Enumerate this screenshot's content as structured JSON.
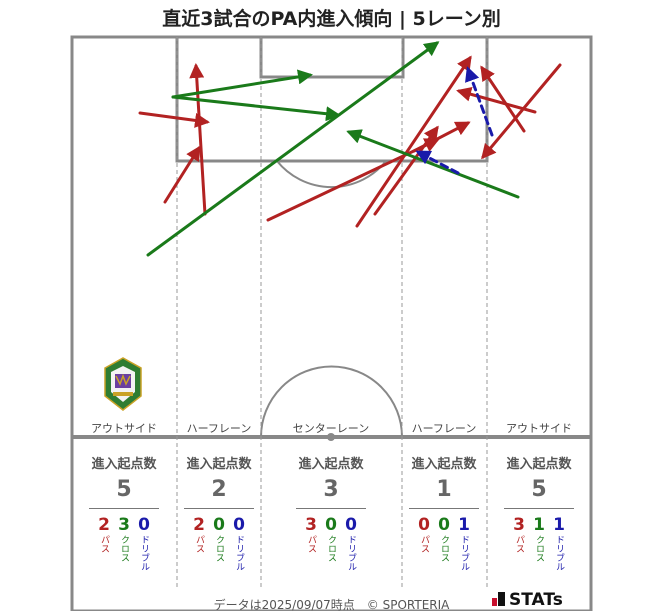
{
  "chart_data": {
    "type": "pass-map",
    "title": "直近3試合のPA内進入傾向 | 5レーン別",
    "lanes": [
      {
        "name": "アウトサイド",
        "stat_header": "進入起点数",
        "total": 5,
        "pass": 2,
        "cross": 3,
        "dribble": 0
      },
      {
        "name": "ハーフレーン",
        "stat_header": "進入起点数",
        "total": 2,
        "pass": 2,
        "cross": 0,
        "dribble": 0
      },
      {
        "name": "センターレーン",
        "stat_header": "進入起点数",
        "total": 3,
        "pass": 3,
        "cross": 0,
        "dribble": 0
      },
      {
        "name": "ハーフレーン",
        "stat_header": "進入起点数",
        "total": 1,
        "pass": 0,
        "cross": 0,
        "dribble": 1
      },
      {
        "name": "アウトサイド",
        "stat_header": "進入起点数",
        "total": 5,
        "pass": 3,
        "cross": 1,
        "dribble": 1
      }
    ],
    "type_labels": {
      "pass": "パス",
      "cross": "クロス",
      "dribble": "ドリブル"
    },
    "colors": {
      "pass": "#b22222",
      "cross": "#1a7a1a",
      "dribble": "#1a1aaa"
    },
    "entries": [
      {
        "kind": "pass",
        "from": [
          165,
          202
        ],
        "to": [
          199,
          148
        ]
      },
      {
        "kind": "pass",
        "from": [
          205,
          214
        ],
        "to": [
          196,
          66
        ]
      },
      {
        "kind": "pass",
        "from": [
          140,
          113
        ],
        "to": [
          207,
          122
        ]
      },
      {
        "kind": "cross",
        "from": [
          173,
          97
        ],
        "to": [
          310,
          75
        ]
      },
      {
        "kind": "cross",
        "from": [
          173,
          97
        ],
        "to": [
          338,
          115
        ]
      },
      {
        "kind": "cross",
        "from": [
          148,
          255
        ],
        "to": [
          437,
          43
        ]
      },
      {
        "kind": "pass",
        "from": [
          268,
          220
        ],
        "to": [
          437,
          140
        ]
      },
      {
        "kind": "pass",
        "from": [
          357,
          226
        ],
        "to": [
          470,
          58
        ]
      },
      {
        "kind": "pass",
        "from": [
          375,
          214
        ],
        "to": [
          437,
          128
        ]
      },
      {
        "kind": "pass",
        "from": [
          414,
          151
        ],
        "to": [
          468,
          123
        ]
      },
      {
        "kind": "cross",
        "from": [
          518,
          197
        ],
        "to": [
          349,
          132
        ]
      },
      {
        "kind": "pass",
        "from": [
          560,
          65
        ],
        "to": [
          483,
          157
        ]
      },
      {
        "kind": "pass",
        "from": [
          535,
          112
        ],
        "to": [
          459,
          91
        ]
      },
      {
        "kind": "pass",
        "from": [
          524,
          131
        ],
        "to": [
          482,
          68
        ]
      },
      {
        "kind": "dribble",
        "from": [
          492,
          135
        ],
        "to": [
          468,
          69
        ]
      },
      {
        "kind": "dribble",
        "from": [
          458,
          173
        ],
        "to": [
          418,
          152
        ]
      }
    ]
  },
  "footer": {
    "date_text": "データは2025/09/07時点",
    "copyright": "© SPORTERIA",
    "brand": "STATs"
  }
}
